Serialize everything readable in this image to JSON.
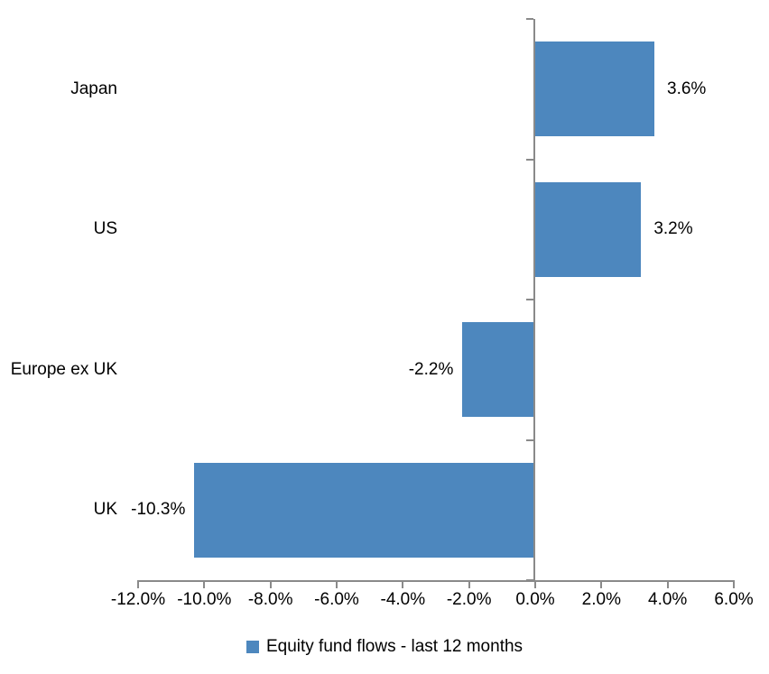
{
  "chart_data": {
    "type": "bar",
    "orientation": "horizontal",
    "title": "",
    "categories": [
      "Japan",
      "US",
      "Europe ex UK",
      "UK"
    ],
    "series": [
      {
        "name": "Equity fund flows - last 12 months",
        "values": [
          3.6,
          3.2,
          -2.2,
          -10.3
        ],
        "data_labels": [
          "3.6%",
          "3.2%",
          "-2.2%",
          "-10.3%"
        ],
        "color": "#4D87BE"
      }
    ],
    "xlabel": "",
    "ylabel": "",
    "xlim": [
      -12,
      6
    ],
    "x_ticks": [
      -12,
      -10,
      -8,
      -6,
      -4,
      -2,
      0,
      2,
      4,
      6
    ],
    "x_tick_labels": [
      "-12.0%",
      "-10.0%",
      "-8.0%",
      "-6.0%",
      "-4.0%",
      "-2.0%",
      "0.0%",
      "2.0%",
      "4.0%",
      "6.0%"
    ],
    "grid": false,
    "legend_position": "bottom",
    "axis_color": "#8a8a8a",
    "text_color": "#000000",
    "background": "#ffffff"
  },
  "legend": {
    "items": [
      {
        "label": "Equity fund flows - last 12 months",
        "color": "#4D87BE"
      }
    ]
  }
}
